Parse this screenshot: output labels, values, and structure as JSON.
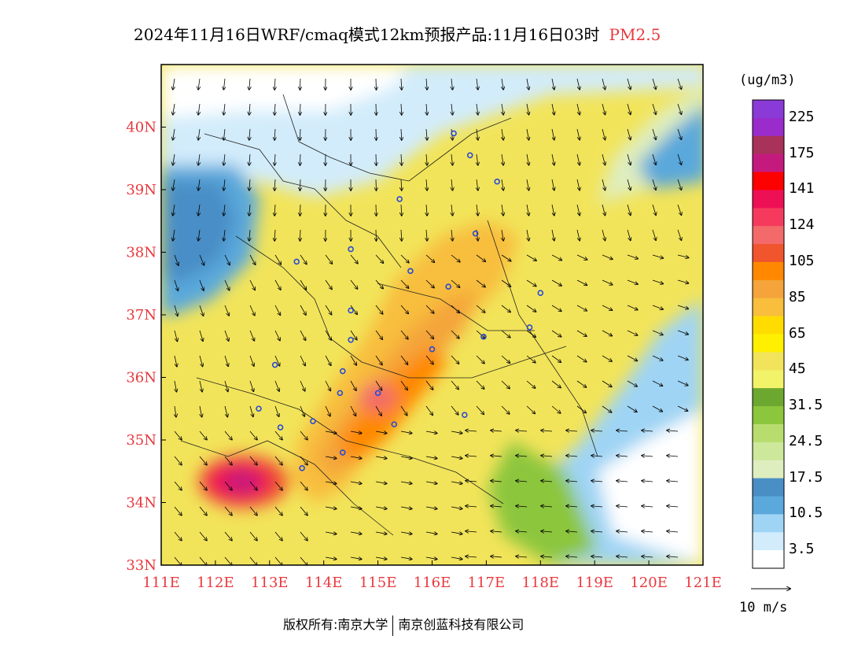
{
  "title": {
    "text": "2024年11月16日WRF/cmaq模式12km预报产品:11月16日03时",
    "variable": "PM2.5"
  },
  "map": {
    "lon_range": [
      111,
      121
    ],
    "lat_range": [
      33,
      41
    ],
    "lon_ticks": [
      "111E",
      "112E",
      "113E",
      "114E",
      "115E",
      "116E",
      "117E",
      "118E",
      "119E",
      "120E",
      "121E"
    ],
    "lat_ticks": [
      "34N",
      "35N",
      "36N",
      "37N",
      "38N",
      "39N",
      "40N"
    ],
    "lat_tick_values": [
      34,
      35,
      36,
      37,
      38,
      39,
      40
    ],
    "lat_bottom_label": "33N",
    "tick_label_color": "#e8383d"
  },
  "colorbar": {
    "unit": "(ug/m3)",
    "labels": [
      "225",
      "175",
      "141",
      "124",
      "105",
      "85",
      "65",
      "45",
      "31.5",
      "24.5",
      "17.5",
      "10.5",
      "3.5"
    ],
    "colors_top_to_bottom": [
      "#8a3ad6",
      "#9a2ccc",
      "#a8325a",
      "#c41a7e",
      "#ff0000",
      "#ee1055",
      "#f53a5e",
      "#f26a6a",
      "#f0552e",
      "#ff8800",
      "#f4a43a",
      "#f8be3c",
      "#ffdc00",
      "#fff000",
      "#f2e45a",
      "#f3f36a",
      "#6ca830",
      "#8cc63c",
      "#b8dc6e",
      "#cde89a",
      "#dfeebf",
      "#4a8ec6",
      "#5aa8dc",
      "#9fd4f4",
      "#d2ecfb",
      "#ffffff"
    ]
  },
  "wind_reference": {
    "label": "10 m/s"
  },
  "cities": [
    {
      "lon": 116.4,
      "lat": 39.9
    },
    {
      "lon": 116.7,
      "lat": 39.55
    },
    {
      "lon": 117.2,
      "lat": 39.13
    },
    {
      "lon": 115.4,
      "lat": 38.85
    },
    {
      "lon": 116.8,
      "lat": 38.3
    },
    {
      "lon": 114.5,
      "lat": 38.05
    },
    {
      "lon": 113.5,
      "lat": 37.85
    },
    {
      "lon": 115.6,
      "lat": 37.7
    },
    {
      "lon": 116.3,
      "lat": 37.45
    },
    {
      "lon": 118.0,
      "lat": 37.35
    },
    {
      "lon": 114.5,
      "lat": 37.07
    },
    {
      "lon": 117.8,
      "lat": 36.8
    },
    {
      "lon": 116.95,
      "lat": 36.65
    },
    {
      "lon": 114.5,
      "lat": 36.6
    },
    {
      "lon": 116.0,
      "lat": 36.45
    },
    {
      "lon": 113.1,
      "lat": 36.2
    },
    {
      "lon": 114.35,
      "lat": 36.1
    },
    {
      "lon": 115.0,
      "lat": 35.75
    },
    {
      "lon": 114.3,
      "lat": 35.75
    },
    {
      "lon": 112.8,
      "lat": 35.5
    },
    {
      "lon": 116.6,
      "lat": 35.4
    },
    {
      "lon": 113.8,
      "lat": 35.3
    },
    {
      "lon": 113.2,
      "lat": 35.2
    },
    {
      "lon": 115.3,
      "lat": 35.25
    },
    {
      "lon": 114.35,
      "lat": 34.8
    },
    {
      "lon": 113.6,
      "lat": 34.55
    }
  ],
  "copyright": {
    "left": "版权所有:南京大学",
    "right": "南京创蓝科技有限公司"
  }
}
